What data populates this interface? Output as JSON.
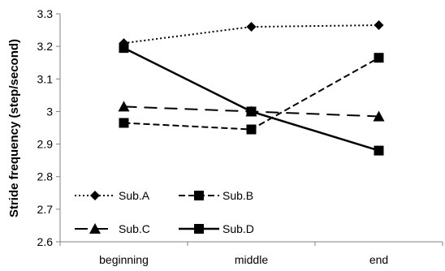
{
  "chart_data": {
    "type": "line",
    "ylabel": "Stride frequency (step/second)",
    "xlabel": "",
    "categories": [
      "beginning",
      "middle",
      "end"
    ],
    "ylim": [
      2.6,
      3.3
    ],
    "yticks": [
      "2.6",
      "2.7",
      "2.8",
      "2.9",
      "3",
      "3.1",
      "3.2",
      "3.3"
    ],
    "grid": false,
    "legend_position": "bottom-left",
    "series": [
      {
        "name": "Sub.A",
        "values": [
          3.21,
          3.26,
          3.265
        ],
        "line_style": "dotted",
        "marker": "diamond"
      },
      {
        "name": "Sub.B",
        "values": [
          2.965,
          2.945,
          3.165
        ],
        "line_style": "short-dash",
        "marker": "square"
      },
      {
        "name": "Sub.C",
        "values": [
          3.015,
          3.0,
          2.985
        ],
        "line_style": "long-dash",
        "marker": "triangle"
      },
      {
        "name": "Sub.D",
        "values": [
          3.195,
          3.0,
          2.88
        ],
        "line_style": "solid",
        "marker": "square"
      }
    ],
    "colors": {
      "line": "#000000",
      "axis": "#808080"
    }
  }
}
